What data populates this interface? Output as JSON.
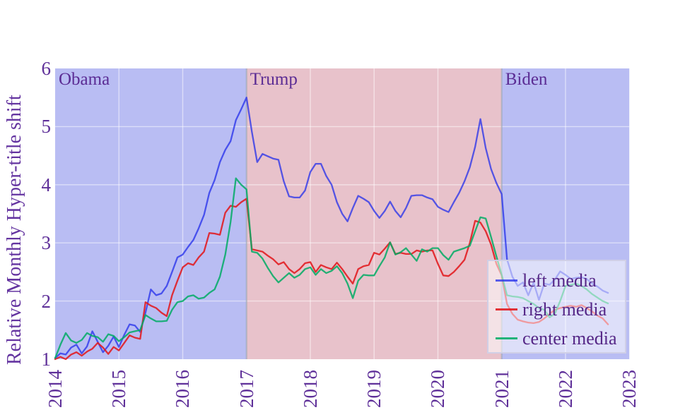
{
  "figure": {
    "y_axis_title": "Relative Monthly Hyper-title shift",
    "y_ticks": [
      "1",
      "2",
      "3",
      "4",
      "5",
      "6"
    ],
    "x_ticks": [
      "2014",
      "2015",
      "2016",
      "2017",
      "2018",
      "2019",
      "2020",
      "2021",
      "2022",
      "2023"
    ],
    "text_color": "#5b2c94",
    "gridline_color": "#ffffff"
  },
  "regions": [
    {
      "label": "Obama",
      "start": 2014,
      "end": 2017,
      "color": "#b9bdf3"
    },
    {
      "label": "Trump",
      "start": 2017,
      "end": 2021,
      "color": "#e8c2cb"
    },
    {
      "label": "Biden",
      "start": 2021,
      "end": 2023,
      "color": "#b9bdf3"
    }
  ],
  "legend": {
    "items": [
      {
        "label": "left media",
        "color": "rgba(35,45,235,0.75)"
      },
      {
        "label": "right media",
        "color": "rgba(225,25,30,0.88)"
      },
      {
        "label": "center media",
        "color": "rgba(0,172,100,0.85)"
      }
    ]
  },
  "chart_data": {
    "type": "line",
    "ylabel": "Relative Monthly Hyper-title shift",
    "xlim": [
      2014,
      2023
    ],
    "ylim": [
      1,
      6
    ],
    "grid": true,
    "legend_position": "lower right",
    "x_start": 2014.0,
    "x_step_years": 0.08333333,
    "annotations": [
      "Obama",
      "Trump",
      "Biden"
    ],
    "background_bands": [
      {
        "label": "Obama",
        "from": 2014,
        "to": 2017,
        "color": "#b9bdf3"
      },
      {
        "label": "Trump",
        "from": 2017,
        "to": 2021,
        "color": "#e8c2cb"
      },
      {
        "label": "Biden",
        "from": 2021,
        "to": 2023,
        "color": "#b9bdf3"
      }
    ],
    "series": [
      {
        "name": "left media",
        "color": "rgba(35,45,235,0.75)",
        "values": [
          1.02,
          1.1,
          1.08,
          1.2,
          1.25,
          1.1,
          1.22,
          1.48,
          1.3,
          1.12,
          1.23,
          1.39,
          1.21,
          1.42,
          1.6,
          1.58,
          1.47,
          1.8,
          2.2,
          2.1,
          2.13,
          2.26,
          2.5,
          2.75,
          2.8,
          2.93,
          3.05,
          3.25,
          3.48,
          3.86,
          4.08,
          4.39,
          4.6,
          4.75,
          5.11,
          5.3,
          5.5,
          4.91,
          4.39,
          4.53,
          4.49,
          4.45,
          4.43,
          4.06,
          3.8,
          3.78,
          3.78,
          3.9,
          4.22,
          4.36,
          4.36,
          4.15,
          4.0,
          3.7,
          3.5,
          3.37,
          3.6,
          3.81,
          3.76,
          3.7,
          3.55,
          3.43,
          3.55,
          3.71,
          3.55,
          3.44,
          3.6,
          3.81,
          3.82,
          3.82,
          3.78,
          3.75,
          3.62,
          3.57,
          3.53,
          3.7,
          3.86,
          4.06,
          4.3,
          4.65,
          5.13,
          4.63,
          4.27,
          4.03,
          3.84,
          2.72,
          2.42,
          2.26,
          2.32,
          2.1,
          2.32,
          2.02,
          2.3,
          2.28,
          2.37,
          2.51,
          2.45,
          2.38,
          2.4,
          2.41,
          2.38,
          2.3,
          2.25,
          2.18,
          2.14
        ]
      },
      {
        "name": "right media",
        "color": "rgba(225,25,30,0.88)",
        "values": [
          1.0,
          1.04,
          1.0,
          1.08,
          1.12,
          1.06,
          1.13,
          1.18,
          1.28,
          1.2,
          1.09,
          1.21,
          1.15,
          1.28,
          1.41,
          1.37,
          1.35,
          1.98,
          1.92,
          1.88,
          1.8,
          1.74,
          2.1,
          2.35,
          2.58,
          2.65,
          2.62,
          2.75,
          2.85,
          3.17,
          3.16,
          3.14,
          3.52,
          3.64,
          3.62,
          3.7,
          3.76,
          2.89,
          2.87,
          2.85,
          2.78,
          2.72,
          2.63,
          2.67,
          2.55,
          2.48,
          2.55,
          2.65,
          2.67,
          2.5,
          2.62,
          2.58,
          2.55,
          2.66,
          2.55,
          2.42,
          2.3,
          2.55,
          2.6,
          2.62,
          2.83,
          2.8,
          2.9,
          3.01,
          2.81,
          2.83,
          2.81,
          2.81,
          2.87,
          2.85,
          2.87,
          2.87,
          2.64,
          2.44,
          2.43,
          2.5,
          2.6,
          2.71,
          3.0,
          3.38,
          3.35,
          3.2,
          2.97,
          2.64,
          2.44,
          1.95,
          1.78,
          1.68,
          1.65,
          1.63,
          1.62,
          1.64,
          1.7,
          1.78,
          1.85,
          1.88,
          1.9,
          1.92,
          1.9,
          1.93,
          1.88,
          1.82,
          1.75,
          1.7,
          1.6
        ]
      },
      {
        "name": "center media",
        "color": "rgba(0,172,100,0.85)",
        "values": [
          1.02,
          1.25,
          1.45,
          1.32,
          1.28,
          1.33,
          1.45,
          1.4,
          1.38,
          1.3,
          1.43,
          1.4,
          1.31,
          1.38,
          1.46,
          1.48,
          1.5,
          1.76,
          1.7,
          1.65,
          1.65,
          1.66,
          1.85,
          1.98,
          2.0,
          2.08,
          2.1,
          2.04,
          2.06,
          2.14,
          2.2,
          2.42,
          2.8,
          3.36,
          4.11,
          4.0,
          3.92,
          2.85,
          2.83,
          2.73,
          2.57,
          2.43,
          2.32,
          2.4,
          2.48,
          2.4,
          2.45,
          2.55,
          2.58,
          2.45,
          2.55,
          2.48,
          2.52,
          2.6,
          2.48,
          2.3,
          2.05,
          2.35,
          2.45,
          2.44,
          2.44,
          2.6,
          2.75,
          3.01,
          2.8,
          2.84,
          2.91,
          2.8,
          2.69,
          2.89,
          2.85,
          2.91,
          2.91,
          2.79,
          2.71,
          2.85,
          2.88,
          2.91,
          2.95,
          3.2,
          3.44,
          3.42,
          3.1,
          2.77,
          2.45,
          2.1,
          2.08,
          2.07,
          2.05,
          2.0,
          1.95,
          1.88,
          1.85,
          1.72,
          1.78,
          2.0,
          2.26,
          2.28,
          2.3,
          2.26,
          2.2,
          2.12,
          2.06,
          2.0,
          1.96
        ]
      }
    ]
  }
}
